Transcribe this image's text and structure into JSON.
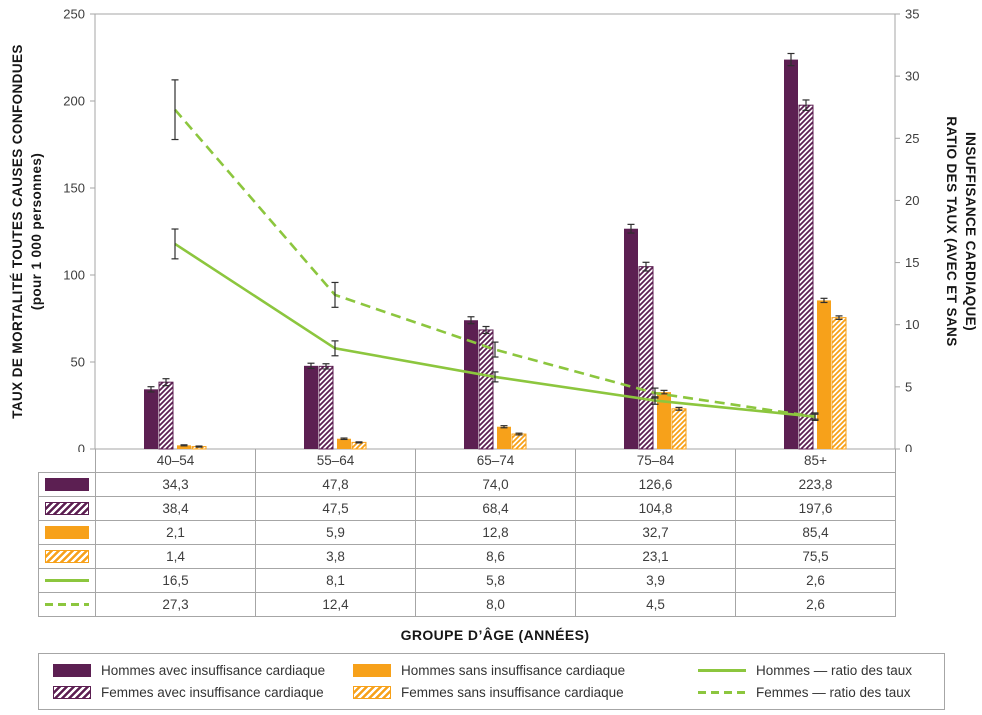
{
  "chart_data": {
    "type": "bar+line",
    "categories": [
      "40–54",
      "55–64",
      "65–74",
      "75–84",
      "85+"
    ],
    "bar_series": [
      {
        "name": "Hommes avec insuffisance cardiaque",
        "style": "solid",
        "color_key": "purple",
        "axis": "left",
        "values": [
          34.3,
          47.8,
          74.0,
          126.6,
          223.8
        ],
        "errors": [
          1.5,
          1.5,
          2.0,
          2.5,
          3.5
        ]
      },
      {
        "name": "Femmes avec insuffisance cardiaque",
        "style": "hatched",
        "color_key": "purple",
        "axis": "left",
        "values": [
          38.4,
          47.5,
          68.4,
          104.8,
          197.6
        ],
        "errors": [
          2.0,
          1.5,
          2.0,
          2.5,
          3.0
        ]
      },
      {
        "name": "Hommes sans insuffisance cardiaque",
        "style": "solid",
        "color_key": "orange",
        "axis": "left",
        "values": [
          2.1,
          5.9,
          12.8,
          32.7,
          85.4
        ],
        "errors": [
          0.3,
          0.4,
          0.6,
          1.0,
          1.2
        ]
      },
      {
        "name": "Femmes sans insuffisance cardiaque",
        "style": "hatched",
        "color_key": "orange",
        "axis": "left",
        "values": [
          1.4,
          3.8,
          8.6,
          23.1,
          75.5
        ],
        "errors": [
          0.3,
          0.3,
          0.5,
          0.8,
          1.0
        ]
      }
    ],
    "line_series": [
      {
        "name": "Hommes — ratio des taux",
        "style": "solid",
        "color_key": "green",
        "axis": "right",
        "values": [
          16.5,
          8.1,
          5.8,
          3.9,
          2.6
        ],
        "errors": [
          1.2,
          0.6,
          0.4,
          0.3,
          0.2
        ]
      },
      {
        "name": "Femmes — ratio des taux",
        "style": "dashed",
        "color_key": "green",
        "axis": "right",
        "values": [
          27.3,
          12.4,
          8.0,
          4.5,
          2.6
        ],
        "errors": [
          2.4,
          1.0,
          0.6,
          0.4,
          0.3
        ]
      }
    ],
    "left_axis": {
      "title_line1": "TAUX DE MORTALITÉ TOUTES CAUSES CONFONDUES",
      "title_line2": "(pour 1 000 personnes)",
      "min": 0,
      "max": 250,
      "step": 50,
      "ticks": [
        0,
        50,
        100,
        150,
        200,
        250
      ]
    },
    "right_axis": {
      "title_line1": "RATIO DES TAUX (AVEC ET SANS",
      "title_line2": "INSUFFISANCE CARDIAQUE)",
      "min": 0,
      "max": 35,
      "step": 5,
      "ticks": [
        0,
        5,
        10,
        15,
        20,
        25,
        30,
        35
      ]
    },
    "x_axis": {
      "title": "GROUPE D’ÂGE (ANNÉES)"
    },
    "grid": "off",
    "legend_position": "bottom"
  },
  "table": {
    "rows": [
      {
        "swatch": "bar-purple-solid",
        "values": [
          "34,3",
          "47,8",
          "74,0",
          "126,6",
          "223,8"
        ]
      },
      {
        "swatch": "bar-purple-hatched",
        "values": [
          "38,4",
          "47,5",
          "68,4",
          "104,8",
          "197,6"
        ]
      },
      {
        "swatch": "bar-orange-solid",
        "values": [
          "2,1",
          "5,9",
          "12,8",
          "32,7",
          "85,4"
        ]
      },
      {
        "swatch": "bar-orange-hatched",
        "values": [
          "1,4",
          "3,8",
          "8,6",
          "23,1",
          "75,5"
        ]
      },
      {
        "swatch": "line-green-solid",
        "values": [
          "16,5",
          "8,1",
          "5,8",
          "3,9",
          "2,6"
        ]
      },
      {
        "swatch": "line-green-dashed",
        "values": [
          "27,3",
          "12,4",
          "8,0",
          "4,5",
          "2,6"
        ]
      }
    ]
  },
  "legend": {
    "items": [
      {
        "swatch": "bar-purple-solid",
        "label": "Hommes avec insuffisance cardiaque"
      },
      {
        "swatch": "bar-purple-hatched",
        "label": "Femmes avec insuffisance cardiaque"
      },
      {
        "swatch": "bar-orange-solid",
        "label": "Hommes sans insuffisance cardiaque"
      },
      {
        "swatch": "bar-orange-hatched",
        "label": "Femmes sans insuffisance cardiaque"
      },
      {
        "swatch": "line-green-solid",
        "label": "Hommes — ratio des taux"
      },
      {
        "swatch": "line-green-dashed",
        "label": "Femmes — ratio des taux"
      }
    ]
  },
  "colors": {
    "purple": "#5c1f52",
    "orange": "#f7a11a",
    "green": "#8cc63e",
    "grid": "#a6a6a6",
    "text": "#3d3d3d",
    "error_bar": "#2f2f2f"
  }
}
